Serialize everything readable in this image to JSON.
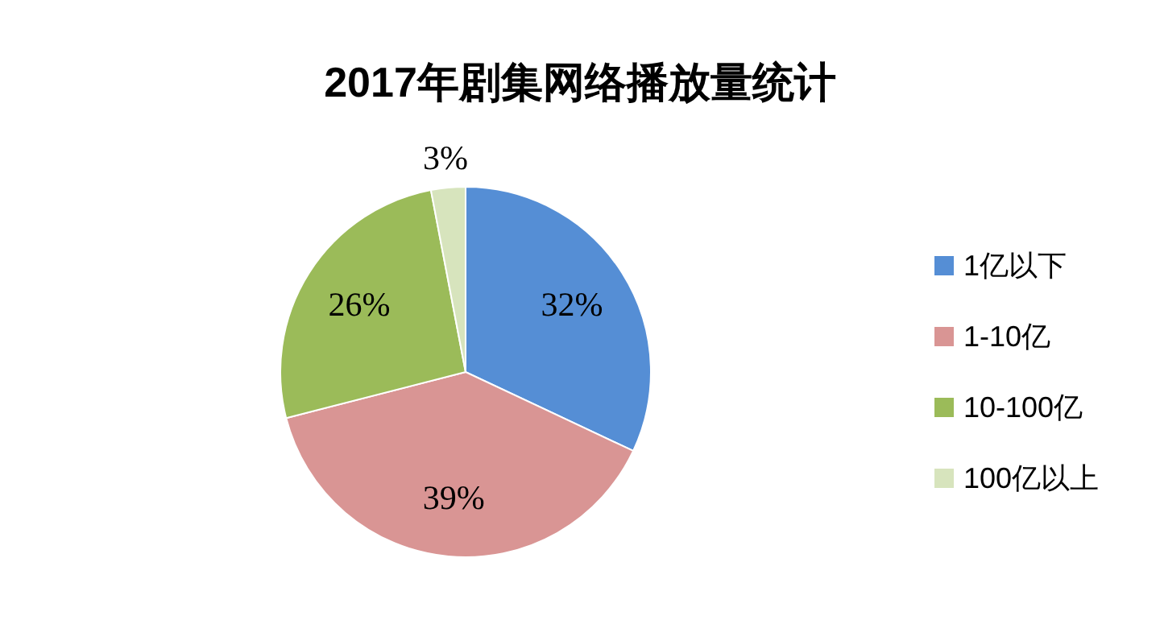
{
  "chart_data": {
    "type": "pie",
    "title": "2017年剧集网络播放量统计",
    "categories": [
      "1亿以下",
      "1-10亿",
      "10-100亿",
      "100亿以上"
    ],
    "values": [
      32,
      39,
      26,
      3
    ],
    "colors": [
      "#558ed5",
      "#d99594",
      "#9bbb59",
      "#d7e4bd"
    ],
    "value_labels": [
      "32%",
      "39%",
      "26%",
      "3%"
    ],
    "legend": "right"
  }
}
